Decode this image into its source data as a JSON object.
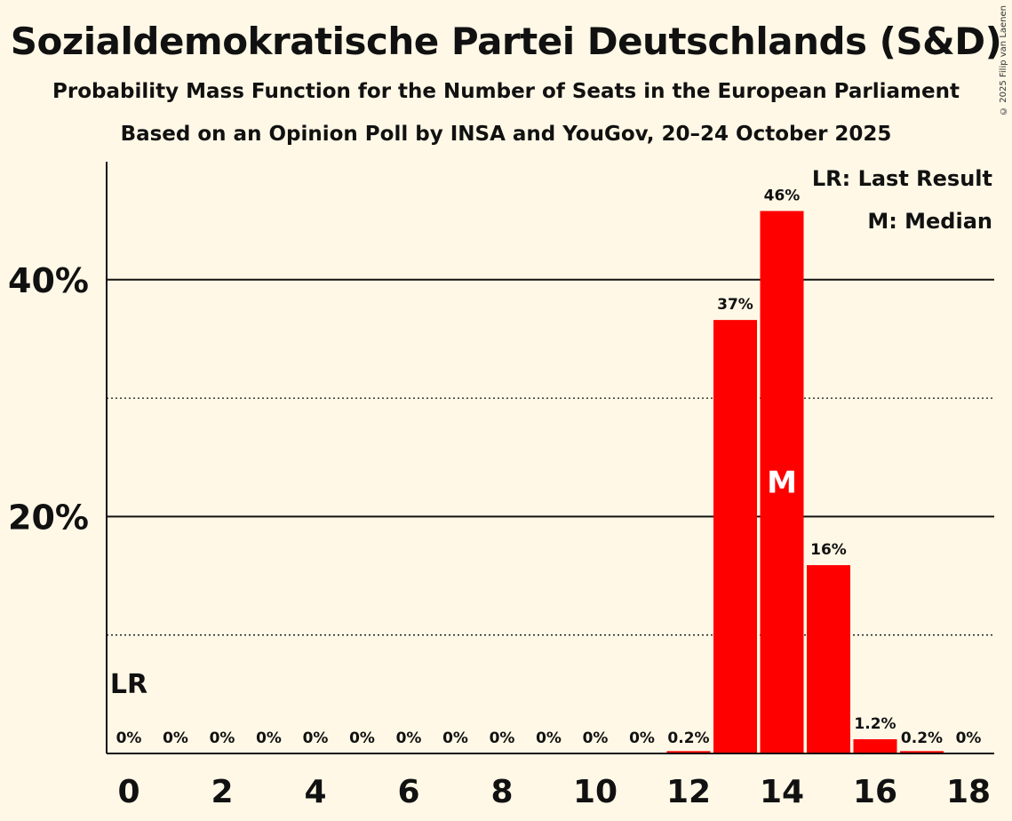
{
  "title": "Sozialdemokratische Partei Deutschlands (S&D)",
  "subtitle": "Probability Mass Function for the Number of Seats in the European Parliament",
  "subtitle2": "Based on an Opinion Poll by INSA and YouGov, 20–24 October 2025",
  "copyright": "© 2025 Filip van Laenen",
  "legend": {
    "last_result": "LR: Last Result",
    "median": "M: Median"
  },
  "colors": {
    "bar": "#ff0000",
    "background": "#fff8e6",
    "text": "#111111"
  },
  "chart_data": {
    "type": "bar",
    "x": [
      0,
      1,
      2,
      3,
      4,
      5,
      6,
      7,
      8,
      9,
      10,
      11,
      12,
      13,
      14,
      15,
      16,
      17,
      18
    ],
    "values": [
      0,
      0,
      0,
      0,
      0,
      0,
      0,
      0,
      0,
      0,
      0,
      0,
      0.2,
      36.6,
      45.8,
      15.9,
      1.2,
      0.2,
      0
    ],
    "labels": [
      "0%",
      "0%",
      "0%",
      "0%",
      "0%",
      "0%",
      "0%",
      "0%",
      "0%",
      "0%",
      "0%",
      "0%",
      "0.2%",
      "37%",
      "46%",
      "16%",
      "1.2%",
      "0.2%",
      "0%"
    ],
    "xtick_labels": [
      "0",
      "2",
      "4",
      "6",
      "8",
      "10",
      "12",
      "14",
      "16",
      "18"
    ],
    "ytick_labels": [
      "20%",
      "40%"
    ],
    "ylim": [
      0,
      50
    ],
    "grid": {
      "solid": [
        20,
        40
      ],
      "dotted": [
        10,
        30
      ]
    },
    "last_result": {
      "x": 0,
      "label": "LR"
    },
    "median": {
      "x": 14,
      "label": "M"
    },
    "xlabel": "",
    "ylabel": ""
  }
}
